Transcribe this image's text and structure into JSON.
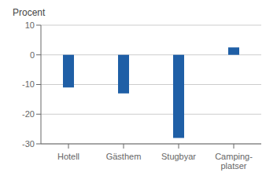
{
  "chart_data": {
    "type": "bar",
    "ylabel": "Procent",
    "categories": [
      "Hotell",
      "Gästhem",
      "Stugbyar",
      "Camping-\nplatser"
    ],
    "values": [
      -11,
      -13,
      -28,
      2.5
    ],
    "color": "#1f5fa6",
    "ylim": [
      -30,
      10
    ],
    "yticks": [
      -30,
      -20,
      -10,
      0,
      10
    ],
    "grid": true
  }
}
